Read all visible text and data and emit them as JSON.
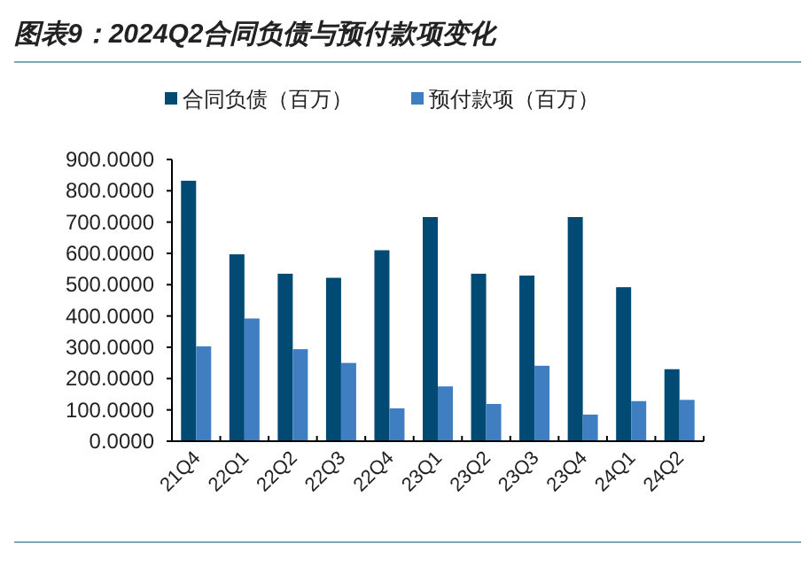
{
  "chart_data": {
    "type": "bar",
    "title": "图表9：2024Q2合同负债与预付款项变化",
    "categories": [
      "21Q4",
      "22Q1",
      "22Q2",
      "22Q3",
      "22Q4",
      "23Q1",
      "23Q2",
      "23Q3",
      "23Q4",
      "24Q1",
      "24Q2"
    ],
    "series": [
      {
        "name": "合同负债（百万）",
        "color": "#004a73",
        "values": [
          832,
          597,
          535,
          522,
          610,
          716,
          535,
          529,
          716,
          492,
          230
        ]
      },
      {
        "name": "预付款项（百万）",
        "color": "#3f7fc1",
        "values": [
          303,
          392,
          294,
          250,
          105,
          175,
          119,
          241,
          85,
          128,
          132
        ]
      }
    ],
    "ylim": [
      0,
      900
    ],
    "yticks": [
      {
        "value": 0,
        "label": "0.0000"
      },
      {
        "value": 100,
        "label": "100.0000"
      },
      {
        "value": 200,
        "label": "200.0000"
      },
      {
        "value": 300,
        "label": "300.0000"
      },
      {
        "value": 400,
        "label": "400.0000"
      },
      {
        "value": 500,
        "label": "500.0000"
      },
      {
        "value": 600,
        "label": "600.0000"
      },
      {
        "value": 700,
        "label": "700.0000"
      },
      {
        "value": 800,
        "label": "800.0000"
      },
      {
        "value": 900,
        "label": "900.0000"
      }
    ],
    "legend": "top",
    "grid": false
  }
}
